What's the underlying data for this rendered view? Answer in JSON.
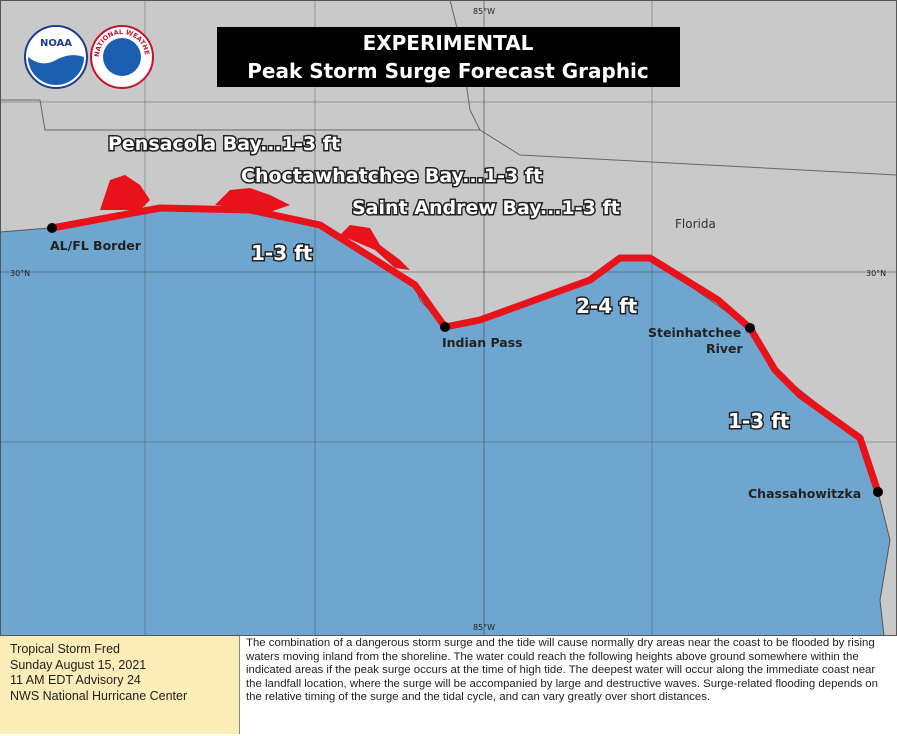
{
  "header": {
    "title_line1": "EXPERIMENTAL",
    "title_line2": "Peak Storm Surge Forecast Graphic"
  },
  "logos": {
    "noaa": "NOAA",
    "nws": "NATIONAL WEATHER SERVICE"
  },
  "graticule": {
    "lon_top": "85°W",
    "lon_bottom": "85°W",
    "lat_left": "30°N",
    "lat_right": "30°N"
  },
  "state_label": "Florida",
  "bay_labels": [
    "Pensacola Bay...1-3 ft",
    "Choctawhatchee Bay...1-3 ft",
    "Saint  Andrew Bay...1-3 ft"
  ],
  "surge_labels": [
    "1-3 ft",
    "2-4 ft",
    "1-3 ft"
  ],
  "places": {
    "al_fl_border": "AL/FL Border",
    "indian_pass": "Indian Pass",
    "steinhatchee": [
      "Steinhatchee",
      "River"
    ],
    "chassahowitzka": "Chassahowitzka"
  },
  "info": {
    "storm": "Tropical Storm Fred",
    "date": "Sunday August 15, 2021",
    "advisory": "11 AM EDT Advisory 24",
    "issuer": "NWS National Hurricane Center"
  },
  "description": "The combination of a dangerous storm surge and the tide will cause normally dry areas near the coast to be flooded by rising waters moving inland from the shoreline.  The water could reach the following heights above ground somewhere within the indicated areas if the peak surge occurs at the time of high tide.  The deepest water will occur along the immediate coast near the landfall location, where the surge will be accompanied by large and destructive waves.  Surge-related flooding depends on the relative timing of the surge and the tidal cycle, and can vary greatly over short distances."
}
